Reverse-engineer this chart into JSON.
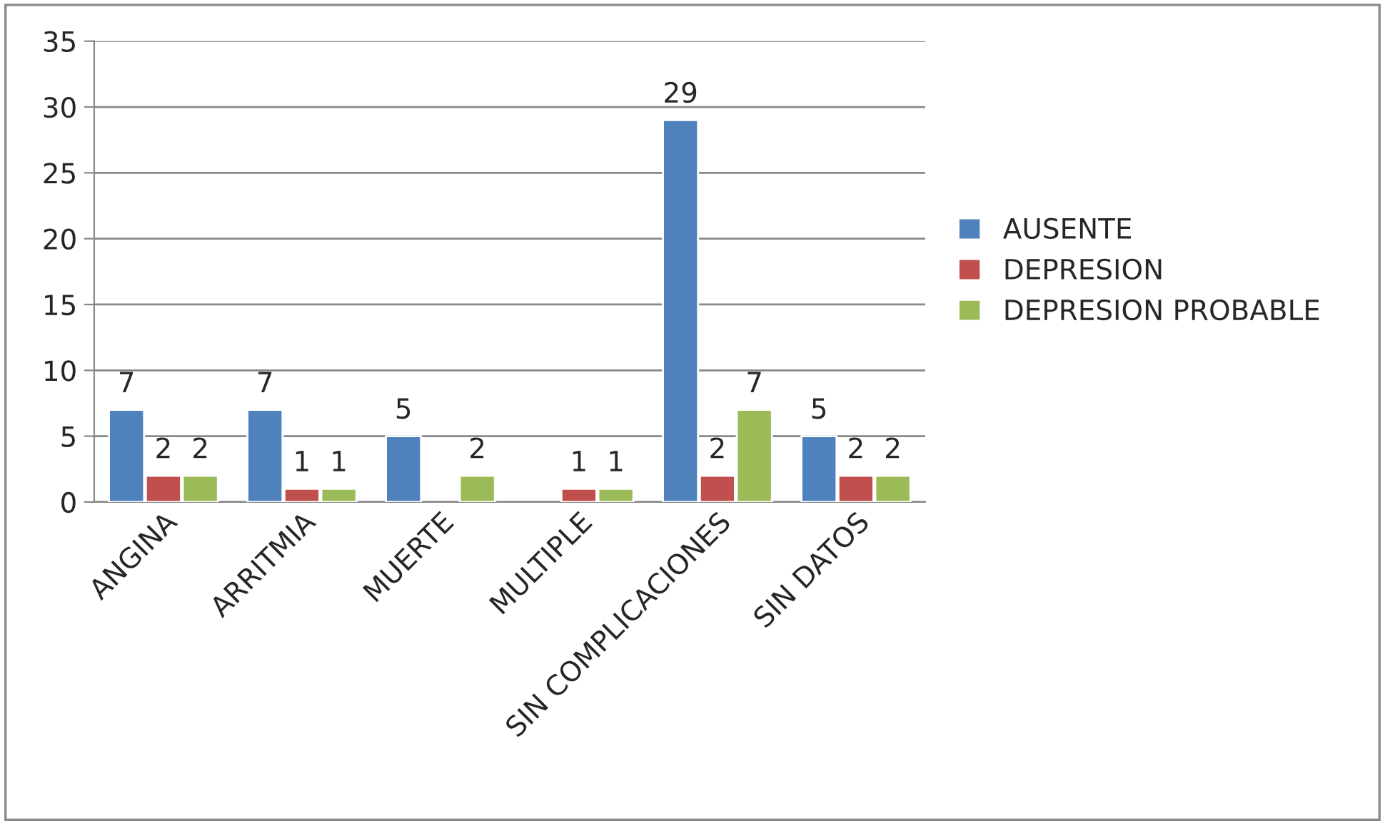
{
  "chart_data": {
    "type": "bar",
    "categories": [
      "ANGINA",
      "ARRITMIA",
      "MUERTE",
      "MULTIPLE",
      "SIN COMPLICACIONES",
      "SIN DATOS"
    ],
    "series": [
      {
        "name": "AUSENTE",
        "color": "#4f81bd",
        "values": [
          7,
          7,
          5,
          null,
          29,
          5
        ]
      },
      {
        "name": "DEPRESION",
        "color": "#c0504d",
        "values": [
          2,
          1,
          null,
          1,
          2,
          2
        ]
      },
      {
        "name": "DEPRESION PROBABLE",
        "color": "#9bbb59",
        "values": [
          2,
          1,
          2,
          1,
          7,
          2
        ]
      }
    ],
    "ylim": [
      0,
      35
    ],
    "yticks": [
      0,
      5,
      10,
      15,
      20,
      25,
      30,
      35
    ],
    "grid": "y",
    "legend": "right",
    "data_labels": true
  }
}
